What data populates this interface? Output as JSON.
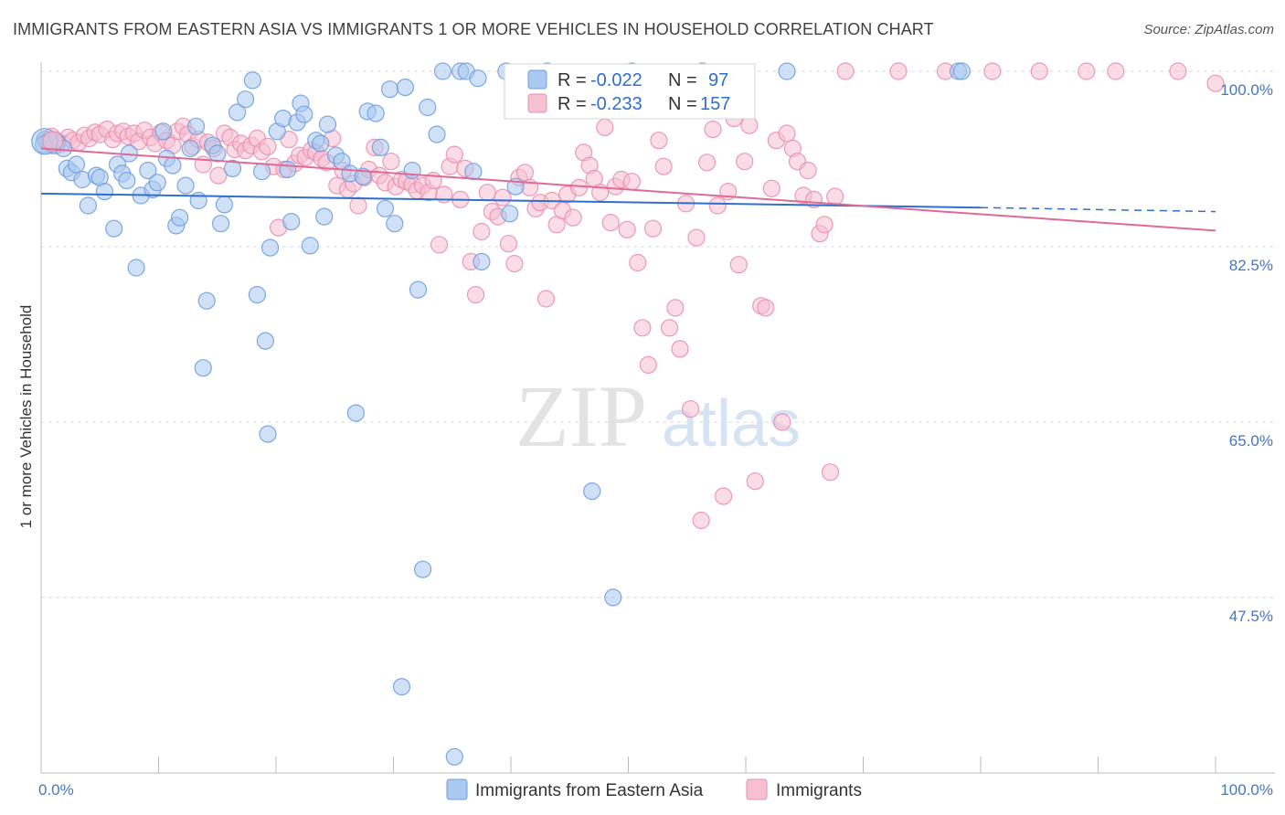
{
  "title": "IMMIGRANTS FROM EASTERN ASIA VS IMMIGRANTS 1 OR MORE VEHICLES IN HOUSEHOLD CORRELATION CHART",
  "source": "Source: ZipAtlas.com",
  "watermark": {
    "zip": "ZIP",
    "atlas": "atlas"
  },
  "colors": {
    "blue": "#6f9fdf",
    "blue_fill": "#aac8f0",
    "blue_line": "#2f6fce",
    "pink": "#ea8fae",
    "pink_fill": "#f6c0d2",
    "pink_line": "#e06a96",
    "label_blue": "#4477c4",
    "grid": "#d8d8d8"
  },
  "stats": [
    {
      "r_label": "R =",
      "r_value": "-0.022",
      "n_label": "N =",
      "n_value": "97",
      "color": "blue"
    },
    {
      "r_label": "R =",
      "r_value": "-0.233",
      "n_label": "N =",
      "n_value": "157",
      "color": "pink"
    }
  ],
  "chart_data": {
    "type": "scatter",
    "title": "IMMIGRANTS FROM EASTERN ASIA VS IMMIGRANTS 1 OR MORE VEHICLES IN HOUSEHOLD CORRELATION CHART",
    "xlabel": "",
    "ylabel": "1 or more Vehicles in Household",
    "xlim": [
      0,
      100
    ],
    "ylim": [
      32,
      101.5
    ],
    "x_tick_labels": [
      "0.0%",
      "100.0%"
    ],
    "y_ticks": [
      100.0,
      82.5,
      65.0,
      47.5
    ],
    "y_tick_labels": [
      "100.0%",
      "82.5%",
      "65.0%",
      "47.5%"
    ],
    "grid": true,
    "legend": {
      "placement": "bottom",
      "entries": [
        "Immigrants from Eastern Asia",
        "Immigrants"
      ]
    },
    "series": [
      {
        "name": "Immigrants from Eastern Asia",
        "color": "blue",
        "trend": {
          "x0": 0,
          "y0": 87.8,
          "x1": 80,
          "y1": 86.4,
          "dash_to": 100,
          "dash_y": 86.0
        },
        "points": [
          [
            0.3,
            93.2
          ],
          [
            0.6,
            93.0
          ],
          [
            1.0,
            92.6
          ],
          [
            1.4,
            92.9
          ],
          [
            1.9,
            92.3
          ],
          [
            2.2,
            90.3
          ],
          [
            2.6,
            89.9
          ],
          [
            3.0,
            90.7
          ],
          [
            3.5,
            89.2
          ],
          [
            4.0,
            86.6
          ],
          [
            4.7,
            89.6
          ],
          [
            5.0,
            89.4
          ],
          [
            5.4,
            88.0
          ],
          [
            6.2,
            84.3
          ],
          [
            6.5,
            90.7
          ],
          [
            6.9,
            89.8
          ],
          [
            7.3,
            89.1
          ],
          [
            7.5,
            91.8
          ],
          [
            8.1,
            80.4
          ],
          [
            8.5,
            87.6
          ],
          [
            9.1,
            90.1
          ],
          [
            9.5,
            88.2
          ],
          [
            9.9,
            88.9
          ],
          [
            10.4,
            94.0
          ],
          [
            10.7,
            91.3
          ],
          [
            11.2,
            90.6
          ],
          [
            11.5,
            84.6
          ],
          [
            11.8,
            85.4
          ],
          [
            12.3,
            88.6
          ],
          [
            12.7,
            92.3
          ],
          [
            13.2,
            94.5
          ],
          [
            13.4,
            87.1
          ],
          [
            13.8,
            70.4
          ],
          [
            14.1,
            77.1
          ],
          [
            14.6,
            92.6
          ],
          [
            15.0,
            91.8
          ],
          [
            15.3,
            84.8
          ],
          [
            15.6,
            86.7
          ],
          [
            16.3,
            90.3
          ],
          [
            16.7,
            95.9
          ],
          [
            17.4,
            97.2
          ],
          [
            18.0,
            99.1
          ],
          [
            18.4,
            77.7
          ],
          [
            18.8,
            90.0
          ],
          [
            19.1,
            73.1
          ],
          [
            19.3,
            63.8
          ],
          [
            19.5,
            82.4
          ],
          [
            20.1,
            94.0
          ],
          [
            20.6,
            95.3
          ],
          [
            21.0,
            90.2
          ],
          [
            21.3,
            85.0
          ],
          [
            21.8,
            94.9
          ],
          [
            22.1,
            96.8
          ],
          [
            22.4,
            95.7
          ],
          [
            22.9,
            82.6
          ],
          [
            23.4,
            93.1
          ],
          [
            23.8,
            92.8
          ],
          [
            24.1,
            85.5
          ],
          [
            24.4,
            94.7
          ],
          [
            25.1,
            91.6
          ],
          [
            25.6,
            91.0
          ],
          [
            26.3,
            89.8
          ],
          [
            26.8,
            65.9
          ],
          [
            27.4,
            89.5
          ],
          [
            27.8,
            96.0
          ],
          [
            28.5,
            95.8
          ],
          [
            28.9,
            92.4
          ],
          [
            29.3,
            86.3
          ],
          [
            29.7,
            98.2
          ],
          [
            30.1,
            84.8
          ],
          [
            30.7,
            38.6
          ],
          [
            31.0,
            98.4
          ],
          [
            31.6,
            90.1
          ],
          [
            32.1,
            78.2
          ],
          [
            32.5,
            50.3
          ],
          [
            32.9,
            96.4
          ],
          [
            33.7,
            93.7
          ],
          [
            34.2,
            100.0
          ],
          [
            35.2,
            31.6
          ],
          [
            35.7,
            100.0
          ],
          [
            36.2,
            100.0
          ],
          [
            36.8,
            90.0
          ],
          [
            37.2,
            99.3
          ],
          [
            37.5,
            81.0
          ],
          [
            39.6,
            100.0
          ],
          [
            39.9,
            85.8
          ],
          [
            40.4,
            88.5
          ],
          [
            43.1,
            100.0
          ],
          [
            46.9,
            58.1
          ],
          [
            48.7,
            47.5
          ],
          [
            50.3,
            100.0
          ],
          [
            56.3,
            100.0
          ],
          [
            63.5,
            100.0
          ],
          [
            78.1,
            100.0
          ],
          [
            78.4,
            100.0
          ],
          [
            1.2,
            93.1
          ],
          [
            0.2,
            92.7
          ]
        ]
      },
      {
        "name": "Immigrants",
        "color": "pink",
        "trend": {
          "x0": 0,
          "y0": 92.3,
          "x1": 100,
          "y1": 84.1
        },
        "points": [
          [
            0.4,
            93.0
          ],
          [
            0.9,
            93.5
          ],
          [
            1.3,
            92.6
          ],
          [
            1.8,
            92.8
          ],
          [
            2.3,
            93.4
          ],
          [
            2.7,
            93.1
          ],
          [
            3.2,
            92.9
          ],
          [
            3.7,
            93.6
          ],
          [
            4.1,
            93.3
          ],
          [
            4.6,
            93.9
          ],
          [
            5.0,
            93.7
          ],
          [
            5.6,
            94.2
          ],
          [
            6.1,
            93.2
          ],
          [
            6.5,
            93.8
          ],
          [
            7.0,
            94.0
          ],
          [
            7.4,
            93.5
          ],
          [
            7.9,
            93.8
          ],
          [
            8.3,
            93.0
          ],
          [
            8.8,
            94.1
          ],
          [
            9.3,
            93.4
          ],
          [
            9.7,
            92.8
          ],
          [
            10.2,
            93.9
          ],
          [
            10.7,
            93.1
          ],
          [
            11.2,
            92.6
          ],
          [
            11.6,
            94.0
          ],
          [
            12.1,
            94.5
          ],
          [
            12.5,
            93.7
          ],
          [
            12.9,
            92.5
          ],
          [
            13.4,
            93.2
          ],
          [
            13.8,
            90.7
          ],
          [
            14.2,
            92.9
          ],
          [
            14.7,
            92.3
          ],
          [
            15.1,
            89.6
          ],
          [
            15.6,
            93.8
          ],
          [
            16.1,
            93.4
          ],
          [
            16.5,
            92.2
          ],
          [
            17.0,
            92.8
          ],
          [
            17.4,
            92.1
          ],
          [
            17.9,
            92.6
          ],
          [
            18.4,
            93.3
          ],
          [
            18.8,
            92.0
          ],
          [
            19.3,
            92.5
          ],
          [
            19.8,
            90.5
          ],
          [
            20.2,
            84.4
          ],
          [
            20.7,
            90.2
          ],
          [
            21.1,
            93.2
          ],
          [
            21.6,
            90.8
          ],
          [
            22.0,
            91.6
          ],
          [
            22.5,
            91.4
          ],
          [
            23.0,
            92.1
          ],
          [
            23.4,
            91.9
          ],
          [
            23.9,
            91.3
          ],
          [
            24.3,
            90.9
          ],
          [
            24.8,
            93.3
          ],
          [
            25.2,
            88.6
          ],
          [
            25.7,
            90.1
          ],
          [
            26.1,
            88.2
          ],
          [
            26.6,
            88.8
          ],
          [
            27.0,
            86.6
          ],
          [
            27.5,
            89.4
          ],
          [
            27.9,
            90.2
          ],
          [
            28.4,
            92.4
          ],
          [
            28.8,
            89.6
          ],
          [
            29.3,
            88.9
          ],
          [
            29.8,
            91.0
          ],
          [
            30.2,
            88.5
          ],
          [
            30.7,
            89.2
          ],
          [
            31.1,
            89.0
          ],
          [
            31.6,
            88.7
          ],
          [
            32.0,
            88.1
          ],
          [
            32.5,
            88.6
          ],
          [
            33.0,
            87.9
          ],
          [
            33.4,
            89.1
          ],
          [
            33.9,
            82.7
          ],
          [
            34.3,
            87.7
          ],
          [
            34.8,
            90.5
          ],
          [
            35.2,
            91.7
          ],
          [
            35.7,
            87.2
          ],
          [
            36.1,
            90.3
          ],
          [
            36.6,
            81.0
          ],
          [
            37.0,
            77.7
          ],
          [
            37.5,
            84.0
          ],
          [
            38.0,
            87.9
          ],
          [
            38.4,
            86.0
          ],
          [
            38.9,
            85.5
          ],
          [
            39.3,
            87.4
          ],
          [
            39.8,
            82.8
          ],
          [
            40.3,
            80.8
          ],
          [
            40.7,
            89.4
          ],
          [
            41.2,
            89.9
          ],
          [
            41.6,
            88.4
          ],
          [
            42.1,
            86.3
          ],
          [
            42.5,
            86.9
          ],
          [
            43.0,
            77.3
          ],
          [
            43.5,
            87.1
          ],
          [
            43.9,
            84.7
          ],
          [
            44.4,
            86.1
          ],
          [
            44.8,
            87.7
          ],
          [
            45.3,
            85.4
          ],
          [
            45.8,
            88.4
          ],
          [
            46.2,
            91.9
          ],
          [
            46.7,
            90.6
          ],
          [
            47.1,
            89.3
          ],
          [
            47.6,
            87.9
          ],
          [
            48.0,
            94.4
          ],
          [
            48.5,
            84.9
          ],
          [
            48.9,
            88.5
          ],
          [
            49.4,
            89.2
          ],
          [
            49.9,
            84.2
          ],
          [
            50.3,
            89.0
          ],
          [
            50.8,
            80.9
          ],
          [
            51.2,
            74.4
          ],
          [
            51.7,
            70.7
          ],
          [
            52.1,
            84.3
          ],
          [
            52.6,
            93.1
          ],
          [
            53.0,
            90.5
          ],
          [
            53.5,
            74.4
          ],
          [
            54.0,
            76.4
          ],
          [
            54.4,
            72.3
          ],
          [
            54.9,
            86.8
          ],
          [
            55.3,
            66.3
          ],
          [
            55.8,
            83.4
          ],
          [
            56.2,
            55.2
          ],
          [
            56.7,
            90.9
          ],
          [
            57.2,
            94.2
          ],
          [
            57.6,
            86.6
          ],
          [
            58.1,
            57.6
          ],
          [
            58.5,
            88.0
          ],
          [
            59.0,
            95.3
          ],
          [
            59.4,
            80.7
          ],
          [
            59.9,
            91.0
          ],
          [
            60.3,
            94.6
          ],
          [
            60.8,
            59.1
          ],
          [
            61.3,
            76.6
          ],
          [
            61.7,
            76.4
          ],
          [
            62.2,
            88.3
          ],
          [
            62.6,
            93.1
          ],
          [
            63.1,
            65.0
          ],
          [
            63.5,
            93.8
          ],
          [
            64.0,
            92.3
          ],
          [
            64.4,
            91.0
          ],
          [
            64.9,
            87.6
          ],
          [
            65.3,
            90.1
          ],
          [
            65.8,
            87.2
          ],
          [
            66.3,
            83.8
          ],
          [
            66.7,
            84.7
          ],
          [
            67.2,
            60.0
          ],
          [
            67.6,
            87.5
          ],
          [
            68.5,
            100.0
          ],
          [
            73.0,
            100.0
          ],
          [
            77.0,
            100.0
          ],
          [
            81.0,
            100.0
          ],
          [
            85.0,
            100.0
          ],
          [
            89.0,
            100.0
          ],
          [
            91.5,
            100.0
          ],
          [
            96.8,
            100.0
          ],
          [
            100.0,
            98.8
          ]
        ]
      }
    ]
  },
  "y_axis_title": "1 or more Vehicles in Household",
  "legend": [
    {
      "label": "Immigrants from Eastern Asia",
      "color": "blue"
    },
    {
      "label": "Immigrants",
      "color": "pink"
    }
  ]
}
